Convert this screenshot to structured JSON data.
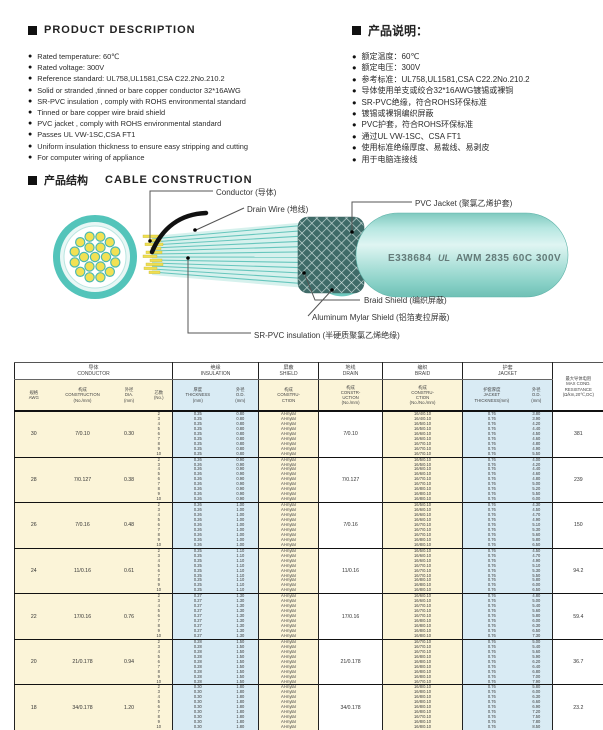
{
  "glyphs": {
    "bullet": "●"
  },
  "colors": {
    "accent_teal": "#53c4ba",
    "teal_light": "#aee3dd",
    "conductor_yellow": "#f2e154",
    "table_cream": "#fbf4d8",
    "table_blue": "#d9ebf4",
    "braid_dark": "#3f6b68",
    "text": "#333333"
  },
  "product_description": {
    "title": "PRODUCT DESCRIPTION",
    "items": [
      "Rated temperature: 60℃",
      "Rated voltage: 300V",
      "Reference standard: UL758,UL1581,CSA C22.2No.210.2",
      "Solid or stranded ,tinned or bare copper conductor 32*16AWG",
      "SR-PVC insulation , comply with ROHS environmental standard",
      "Tinned or bare copper wire braid shield",
      "PVC jacket , comply with ROHS environmental standard",
      "Passes UL VW-1SC,CSA FT1",
      "Uniform insulation thickness to ensure easy stripping and cutting",
      "For computer wiring of appliance"
    ]
  },
  "product_description_cn": {
    "title": "产品说明：",
    "items": [
      "额定温度：60℃",
      "额定电压：300V",
      "参考标准：UL758,UL1581,CSA C22.2No.210.2",
      "导体使用单支或绞合32*16AWG镀锡或裸铜",
      "SR-PVC绝缘，符合ROHS环保标准",
      "镀锡或裸铜编织屏蔽",
      "PVC护套，符合ROHS环保标准",
      "通过UL VW-1SC、CSA FT1",
      "使用标准绝缘厚度、易裁线、易剥皮",
      "用于电脑连接线"
    ]
  },
  "construction": {
    "title_cn": "产品结构",
    "title_en": "CABLE CONSTRUCTION",
    "labels": {
      "conductor": "Conductor (导体)",
      "drain": "Drain Wire (地线)",
      "jacket": "PVC Jacket (聚氯乙烯护套)",
      "braid": "Braid Shield (编织屏蔽)",
      "mylar": "Aluminum Mylar Shield (铝箔麦拉屏蔽)",
      "insulation": "SR-PVC insulation (半硬质聚氯乙烯绝缘)"
    },
    "marking": {
      "cert": "E338684",
      "ul": "UL",
      "spec": "AWM 2835 60C 300V"
    }
  },
  "table": {
    "groups": [
      "导体\nCONDUCTOR",
      "绝缘\nINSULATION",
      "屏蔽\nSHIELD",
      "地线\nDRAIN",
      "编织\nBRAID",
      "护套\nJACKET"
    ],
    "cols": [
      "规格\nAWG",
      "构成\nCONSTRUCTION\n(No./mm)",
      "外径\nDIA.\n(mm)",
      "芯数\n(No.)",
      "厚度\nTHICKNESS\n(mm)",
      "外径\nO.D.\n(mm)",
      "构成\nCONSTRU-\nCTION",
      "构成\nCONSTR-\nUCTION\n(No./mm)",
      "构成\nCONSTRU-\nCTION\n(No./No./mm)",
      "护套厚度\nJACKET\nTHICKNESS(mm)",
      "外径\nO.D.\n(mm)"
    ],
    "resistance_header": "最大导体电阻\nMAX COND.\nRESISTANCE\n(Ω/km,20℃,DC)",
    "rows": [
      {
        "awg": "30",
        "construction": "7/0.10",
        "dia": "0.30",
        "drain": "7/0.10",
        "resistance": "381",
        "cores": [
          "2",
          "3",
          "4",
          "5",
          "6",
          "7",
          "8",
          "9",
          "10"
        ],
        "thickness": "0.25",
        "ins_od": "0.80",
        "shield": "Al-mylar",
        "jacket_thickness": "0.76",
        "braid": [
          "16/4/0.10",
          "16/4/0.10",
          "16/5/0.10",
          "16/5/0.10",
          "16/6/0.10",
          "16/6/0.10",
          "16/7/0.10",
          "16/7/0.10",
          "16/7/0.10"
        ],
        "jacket_od": [
          "3.80",
          "3.90",
          "4.20",
          "4.40",
          "4.50",
          "4.60",
          "4.80",
          "4.90",
          "5.50"
        ]
      },
      {
        "awg": "28",
        "construction": "7/0.127",
        "dia": "0.38",
        "drain": "7/0.127",
        "resistance": "239",
        "cores": [
          "2",
          "3",
          "4",
          "5",
          "6",
          "7",
          "8",
          "9",
          "10"
        ],
        "thickness": "0.26",
        "ins_od": "0.90",
        "shield": "Al-mylar",
        "jacket_thickness": "0.76",
        "braid": [
          "16/5/0.10",
          "16/5/0.10",
          "16/6/0.10",
          "16/6/0.10",
          "16/7/0.10",
          "16/7/0.10",
          "16/8/0.10",
          "16/8/0.10",
          "16/8/0.10"
        ],
        "jacket_od": [
          "4.00",
          "4.20",
          "4.40",
          "4.60",
          "4.80",
          "5.00",
          "5.20",
          "5.50",
          "6.00"
        ]
      },
      {
        "awg": "26",
        "construction": "7/0.16",
        "dia": "0.48",
        "drain": "7/0.16",
        "resistance": "150",
        "cores": [
          "2",
          "3",
          "4",
          "5",
          "6",
          "7",
          "8",
          "9",
          "10"
        ],
        "thickness": "0.26",
        "ins_od": "1.00",
        "shield": "Al-mylar",
        "jacket_thickness": "0.76",
        "braid": [
          "16/5/0.10",
          "16/6/0.10",
          "16/6/0.10",
          "16/6/0.10",
          "16/7/0.10",
          "16/7/0.10",
          "16/7/0.10",
          "16/8/0.10",
          "16/8/0.10"
        ],
        "jacket_od": [
          "4.30",
          "4.50",
          "4.70",
          "4.90",
          "5.10",
          "5.30",
          "5.60",
          "5.80",
          "6.50"
        ]
      },
      {
        "awg": "24",
        "construction": "11/0.16",
        "dia": "0.61",
        "drain": "11/0.16",
        "resistance": "94.2",
        "cores": [
          "2",
          "3",
          "4",
          "5",
          "6",
          "7",
          "8",
          "9",
          "10"
        ],
        "thickness": "0.25",
        "ins_od": "1.10",
        "shield": "Al-mylar",
        "jacket_thickness": "0.76",
        "braid": [
          "16/5/0.10",
          "16/6/0.10",
          "16/6/0.10",
          "16/7/0.10",
          "16/7/0.10",
          "16/7/0.10",
          "16/8/0.10",
          "16/8/0.10",
          "16/8/0.10"
        ],
        "jacket_od": [
          "4.50",
          "4.70",
          "4.90",
          "5.10",
          "5.30",
          "5.50",
          "5.80",
          "6.00",
          "6.50"
        ]
      },
      {
        "awg": "22",
        "construction": "17/0.16",
        "dia": "0.76",
        "drain": "17/0.16",
        "resistance": "59.4",
        "cores": [
          "2",
          "3",
          "4",
          "5",
          "6",
          "7",
          "8",
          "9",
          "10"
        ],
        "thickness": "0.27",
        "ins_od": "1.30",
        "shield": "Al-mylar",
        "jacket_thickness": "0.76",
        "braid": [
          "16/6/0.10",
          "16/6/0.10",
          "16/7/0.10",
          "16/7/0.10",
          "16/7/0.10",
          "16/8/0.10",
          "16/8/0.10",
          "16/8/0.10",
          "16/8/0.10"
        ],
        "jacket_od": [
          "4.80",
          "5.00",
          "5.40",
          "5.60",
          "5.80",
          "6.00",
          "6.30",
          "6.50",
          "7.30"
        ]
      },
      {
        "awg": "20",
        "construction": "21/0.178",
        "dia": "0.94",
        "drain": "21/0.178",
        "resistance": "36.7",
        "cores": [
          "2",
          "3",
          "4",
          "5",
          "6",
          "7",
          "8",
          "9",
          "10"
        ],
        "thickness": "0.28",
        "ins_od": "1.50",
        "shield": "Al-mylar",
        "jacket_thickness": "0.76",
        "braid": [
          "16/7/0.10",
          "16/7/0.10",
          "16/7/0.10",
          "16/8/0.10",
          "16/8/0.10",
          "16/8/0.10",
          "16/8/0.10",
          "16/8/0.10",
          "16/7/0.10"
        ],
        "jacket_od": [
          "5.00",
          "5.40",
          "5.60",
          "5.90",
          "6.20",
          "6.40",
          "6.80",
          "7.00",
          "7.90"
        ]
      },
      {
        "awg": "18",
        "construction": "34/0.178",
        "dia": "1.20",
        "drain": "34/0.178",
        "resistance": "23.2",
        "cores": [
          "2",
          "3",
          "4",
          "5",
          "6",
          "7",
          "8",
          "9",
          "10"
        ],
        "thickness": "0.30",
        "ins_od": "1.80",
        "shield": "Al-mylar",
        "jacket_thickness": "0.76",
        "braid": [
          "16/8/0.10",
          "16/8/0.10",
          "16/8/0.10",
          "16/8/0.10",
          "16/8/0.10",
          "16/8/0.10",
          "16/7/0.10",
          "16/8/0.10",
          "16/8/0.10"
        ],
        "jacket_od": [
          "5.80",
          "6.00",
          "6.30",
          "6.60",
          "6.90",
          "7.20",
          "7.50",
          "7.80",
          "8.50"
        ]
      }
    ]
  }
}
